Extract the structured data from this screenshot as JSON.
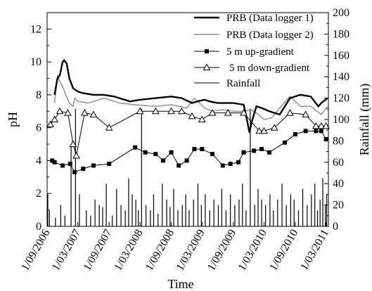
{
  "chart_data": {
    "type": "line",
    "xlabel": "Time",
    "ylabel": "pH",
    "y2label": "Rainfall (mm)",
    "ylim": [
      0,
      13
    ],
    "y2lim": [
      0,
      200
    ],
    "y_ticks": [
      0,
      2,
      4,
      6,
      8,
      10,
      12
    ],
    "y2_ticks": [
      0,
      20,
      40,
      60,
      80,
      100,
      120,
      140,
      160,
      180,
      200
    ],
    "x_ticks": [
      "1/09/2006",
      "1/03/2007",
      "1/09/2007",
      "1/03/2008",
      "1/09/2008",
      "1/03/2009",
      "1/09/2009",
      "1/03/2010",
      "1/09/2010",
      "1/03/2011"
    ],
    "xlim": [
      "2006-09-01",
      "2011-03-15"
    ],
    "legend_position": "top-right",
    "grid": false,
    "series": [
      {
        "name": "PRB (Data logger 1)",
        "style": "thick-line",
        "color": "#000000",
        "x": [
          "2006-10-15",
          "2006-11-01",
          "2006-11-15",
          "2006-12-01",
          "2006-12-10",
          "2006-12-25",
          "2007-01-10",
          "2007-02-01",
          "2007-03-01",
          "2007-04-01",
          "2007-06-01",
          "2007-08-01",
          "2007-10-01",
          "2007-12-01",
          "2008-01-01",
          "2008-03-01",
          "2008-06-01",
          "2008-09-01",
          "2008-11-01",
          "2009-01-01",
          "2009-02-01",
          "2009-03-15",
          "2009-04-15",
          "2009-06-01",
          "2009-09-01",
          "2009-11-01",
          "2009-11-20",
          "2009-12-05",
          "2009-12-20",
          "2010-01-15",
          "2010-02-15",
          "2010-04-01",
          "2010-06-01",
          "2010-08-01",
          "2010-10-01",
          "2010-12-01",
          "2011-01-15",
          "2011-02-01",
          "2011-03-10"
        ],
        "y": [
          8.0,
          9.0,
          9.2,
          10.0,
          10.1,
          9.9,
          9.0,
          8.4,
          8.2,
          8.1,
          8.0,
          8.0,
          7.9,
          7.7,
          7.6,
          7.7,
          7.8,
          7.9,
          7.8,
          7.5,
          7.6,
          7.7,
          7.6,
          7.5,
          7.5,
          7.4,
          6.5,
          5.7,
          6.4,
          7.3,
          7.2,
          7.0,
          6.8,
          7.8,
          8.0,
          7.9,
          7.3,
          7.5,
          7.8
        ]
      },
      {
        "name": "PRB (Data logger 2)",
        "style": "thin-gray-line",
        "color": "#8c8c8c",
        "x": [
          "2006-10-15",
          "2006-11-01",
          "2006-11-15",
          "2006-12-01",
          "2006-12-20",
          "2007-01-10",
          "2007-02-01",
          "2007-02-10",
          "2007-03-01",
          "2007-05-01",
          "2007-08-01",
          "2007-11-01",
          "2008-02-01",
          "2008-06-01",
          "2008-09-01",
          "2008-12-01",
          "2009-01-15",
          "2009-02-15",
          "2009-03-15",
          "2009-05-01",
          "2009-07-01",
          "2009-09-01",
          "2009-11-01",
          "2009-12-15",
          "2010-01-15",
          "2010-03-01",
          "2010-04-15",
          "2010-06-01",
          "2010-08-01",
          "2010-10-01",
          "2010-12-01",
          "2011-02-01",
          "2011-03-10"
        ],
        "y": [
          7.5,
          9.2,
          8.8,
          8.5,
          8.0,
          7.5,
          7.3,
          7.8,
          7.6,
          7.5,
          7.8,
          7.5,
          7.4,
          7.3,
          7.4,
          7.2,
          7.8,
          7.5,
          7.2,
          7.0,
          7.1,
          7.0,
          7.0,
          7.1,
          6.9,
          6.5,
          6.6,
          7.2,
          7.9,
          7.3,
          7.3,
          6.8,
          7.3
        ]
      },
      {
        "name": "5 m up-gradient",
        "style": "line-square",
        "color": "#000000",
        "x": [
          "2006-10-01",
          "2006-10-15",
          "2006-12-01",
          "2007-01-15",
          "2007-02-10",
          "2007-04-01",
          "2007-06-01",
          "2007-09-01",
          "2008-02-01",
          "2008-04-01",
          "2008-06-01",
          "2008-07-15",
          "2008-09-01",
          "2008-10-15",
          "2008-12-01",
          "2009-01-15",
          "2009-03-01",
          "2009-05-01",
          "2009-07-01",
          "2009-08-15",
          "2009-10-01",
          "2009-11-01",
          "2010-01-01",
          "2010-02-15",
          "2010-04-01",
          "2010-07-01",
          "2010-09-01",
          "2010-11-01",
          "2011-01-01",
          "2011-02-01",
          "2011-03-01"
        ],
        "y": [
          4.0,
          3.9,
          3.7,
          3.8,
          3.3,
          3.5,
          3.7,
          3.8,
          4.8,
          4.5,
          4.4,
          4.0,
          4.5,
          3.7,
          4.0,
          4.7,
          4.7,
          4.4,
          3.7,
          3.8,
          3.9,
          4.5,
          4.6,
          4.7,
          4.5,
          5.1,
          5.6,
          5.8,
          5.8,
          5.8,
          5.3
        ]
      },
      {
        "name": "5 m down-gradient",
        "style": "line-triangle",
        "color": "#000000",
        "x": [
          "2006-09-20",
          "2006-10-15",
          "2006-11-15",
          "2007-01-01",
          "2007-02-01",
          "2007-02-20",
          "2007-04-10",
          "2007-06-01",
          "2007-09-01",
          "2008-03-01",
          "2008-06-01",
          "2008-09-01",
          "2008-11-01",
          "2009-01-01",
          "2009-03-01",
          "2009-05-01",
          "2009-08-01",
          "2009-11-01",
          "2010-02-01",
          "2010-03-01",
          "2010-05-01",
          "2010-08-01",
          "2010-11-01",
          "2011-01-01",
          "2011-02-01",
          "2011-03-01"
        ],
        "y": [
          6.2,
          6.5,
          7.0,
          6.9,
          5.0,
          4.3,
          6.9,
          6.8,
          6.0,
          7.0,
          7.0,
          7.0,
          7.0,
          6.7,
          6.5,
          6.9,
          6.9,
          6.9,
          5.8,
          5.8,
          6.0,
          6.9,
          6.8,
          6.1,
          6.1,
          6.1
        ]
      },
      {
        "name": "Rainfall",
        "style": "bars-right-axis",
        "color": "#000000",
        "x": [
          "2006-09-05",
          "2006-09-15",
          "2006-10-20",
          "2006-11-20",
          "2006-12-15",
          "2007-01-20",
          "2007-02-15",
          "2007-03-10",
          "2007-04-20",
          "2007-05-15",
          "2007-06-10",
          "2007-07-05",
          "2007-07-25",
          "2007-08-15",
          "2007-09-20",
          "2007-10-15",
          "2007-11-10",
          "2007-12-05",
          "2007-12-25",
          "2008-01-15",
          "2008-02-05",
          "2008-02-20",
          "2008-03-10",
          "2008-04-05",
          "2008-05-01",
          "2008-05-20",
          "2008-06-15",
          "2008-07-10",
          "2008-08-05",
          "2008-08-25",
          "2008-09-15",
          "2008-10-10",
          "2008-11-05",
          "2008-11-25",
          "2008-12-15",
          "2009-01-10",
          "2009-02-05",
          "2009-02-25",
          "2009-03-20",
          "2009-04-15",
          "2009-05-10",
          "2009-06-05",
          "2009-06-25",
          "2009-07-20",
          "2009-08-15",
          "2009-09-10",
          "2009-10-05",
          "2009-10-25",
          "2009-11-15",
          "2009-12-10",
          "2010-01-05",
          "2010-01-25",
          "2010-02-15",
          "2010-03-10",
          "2010-04-05",
          "2010-04-25",
          "2010-05-20",
          "2010-06-15",
          "2010-07-10",
          "2010-08-05",
          "2010-08-25",
          "2010-09-20",
          "2010-10-15",
          "2010-11-10",
          "2010-12-05",
          "2010-12-25",
          "2011-01-10",
          "2011-01-25",
          "2011-02-10",
          "2011-02-25",
          "2011-03-05"
        ],
        "values": [
          30,
          15,
          8,
          20,
          10,
          75,
          110,
          30,
          15,
          10,
          25,
          20,
          18,
          40,
          10,
          35,
          20,
          15,
          45,
          30,
          25,
          15,
          110,
          20,
          15,
          30,
          12,
          40,
          25,
          18,
          35,
          15,
          20,
          30,
          15,
          25,
          40,
          20,
          30,
          15,
          25,
          20,
          35,
          15,
          30,
          20,
          25,
          40,
          15,
          110,
          20,
          35,
          25,
          20,
          30,
          15,
          25,
          40,
          20,
          30,
          25,
          15,
          35,
          20,
          30,
          40,
          15,
          25,
          45,
          20,
          30
        ]
      }
    ]
  }
}
